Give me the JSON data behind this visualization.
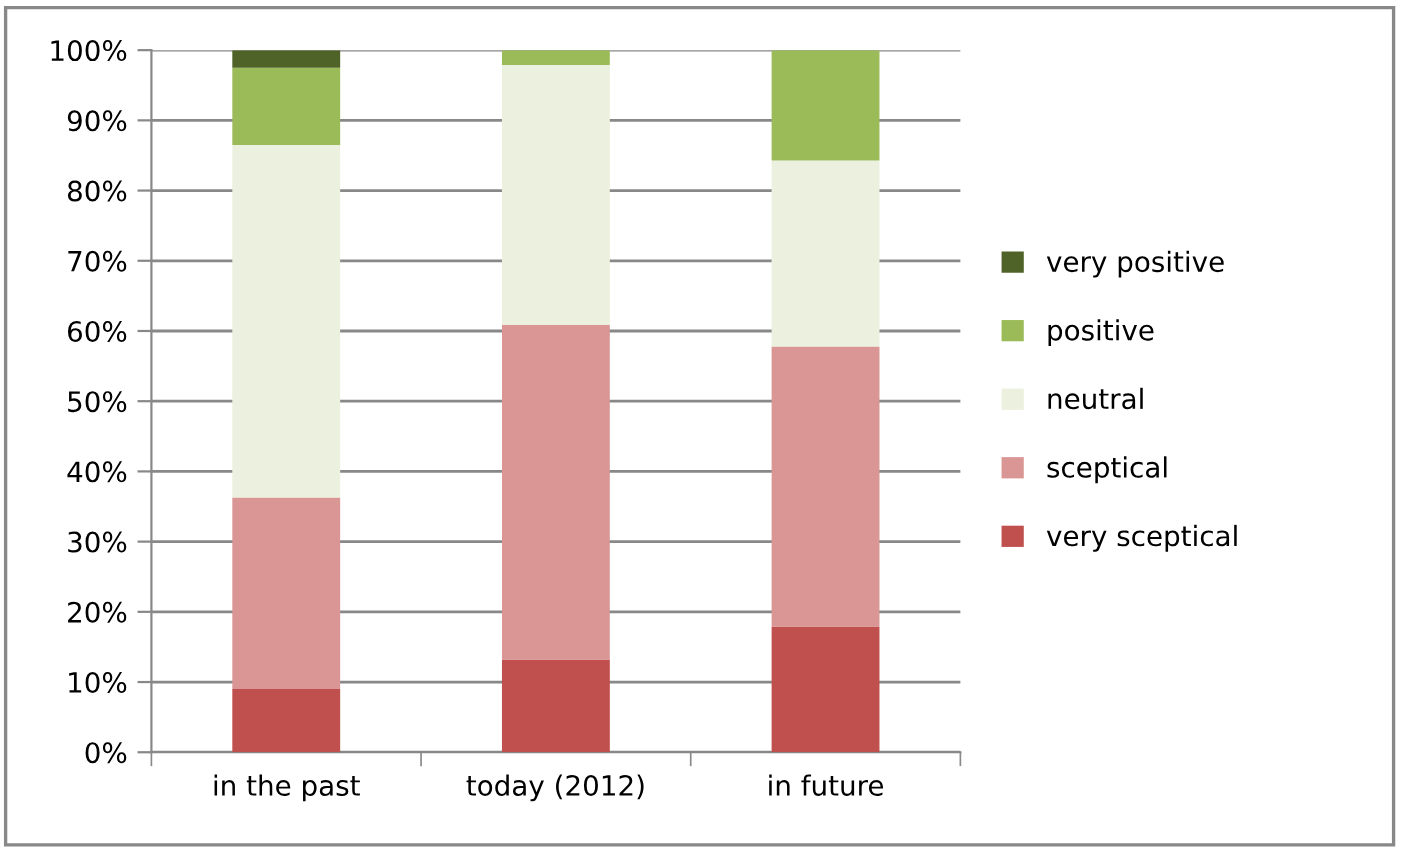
{
  "chart_data": {
    "type": "bar",
    "stacked": true,
    "categories": [
      "in the past",
      "today (2012)",
      "in future"
    ],
    "series": [
      {
        "name": "very sceptical",
        "color": "#c0504d",
        "values": [
          9,
          13.2,
          17.9
        ]
      },
      {
        "name": "sceptical",
        "color": "#d99694",
        "values": [
          27.3,
          47.7,
          39.9
        ]
      },
      {
        "name": "neutral",
        "color": "#ebf1de",
        "values": [
          50.2,
          37,
          26.5
        ]
      },
      {
        "name": "positive",
        "color": "#9bbb59",
        "values": [
          11,
          2.1,
          15.7
        ]
      },
      {
        "name": "very positive",
        "color": "#4f6228",
        "values": [
          2.5,
          0,
          0
        ]
      }
    ],
    "ylim": [
      0,
      100
    ],
    "yticks": [
      {
        "value": 0,
        "label": "0%"
      },
      {
        "value": 10,
        "label": "10%"
      },
      {
        "value": 20,
        "label": "20%"
      },
      {
        "value": 30,
        "label": "30%"
      },
      {
        "value": 40,
        "label": "40%"
      },
      {
        "value": 50,
        "label": "50%"
      },
      {
        "value": 60,
        "label": "60%"
      },
      {
        "value": 70,
        "label": "70%"
      },
      {
        "value": 80,
        "label": "80%"
      },
      {
        "value": 90,
        "label": "90%"
      },
      {
        "value": 100,
        "label": "100%"
      }
    ],
    "grid": "y",
    "legend": "right"
  }
}
